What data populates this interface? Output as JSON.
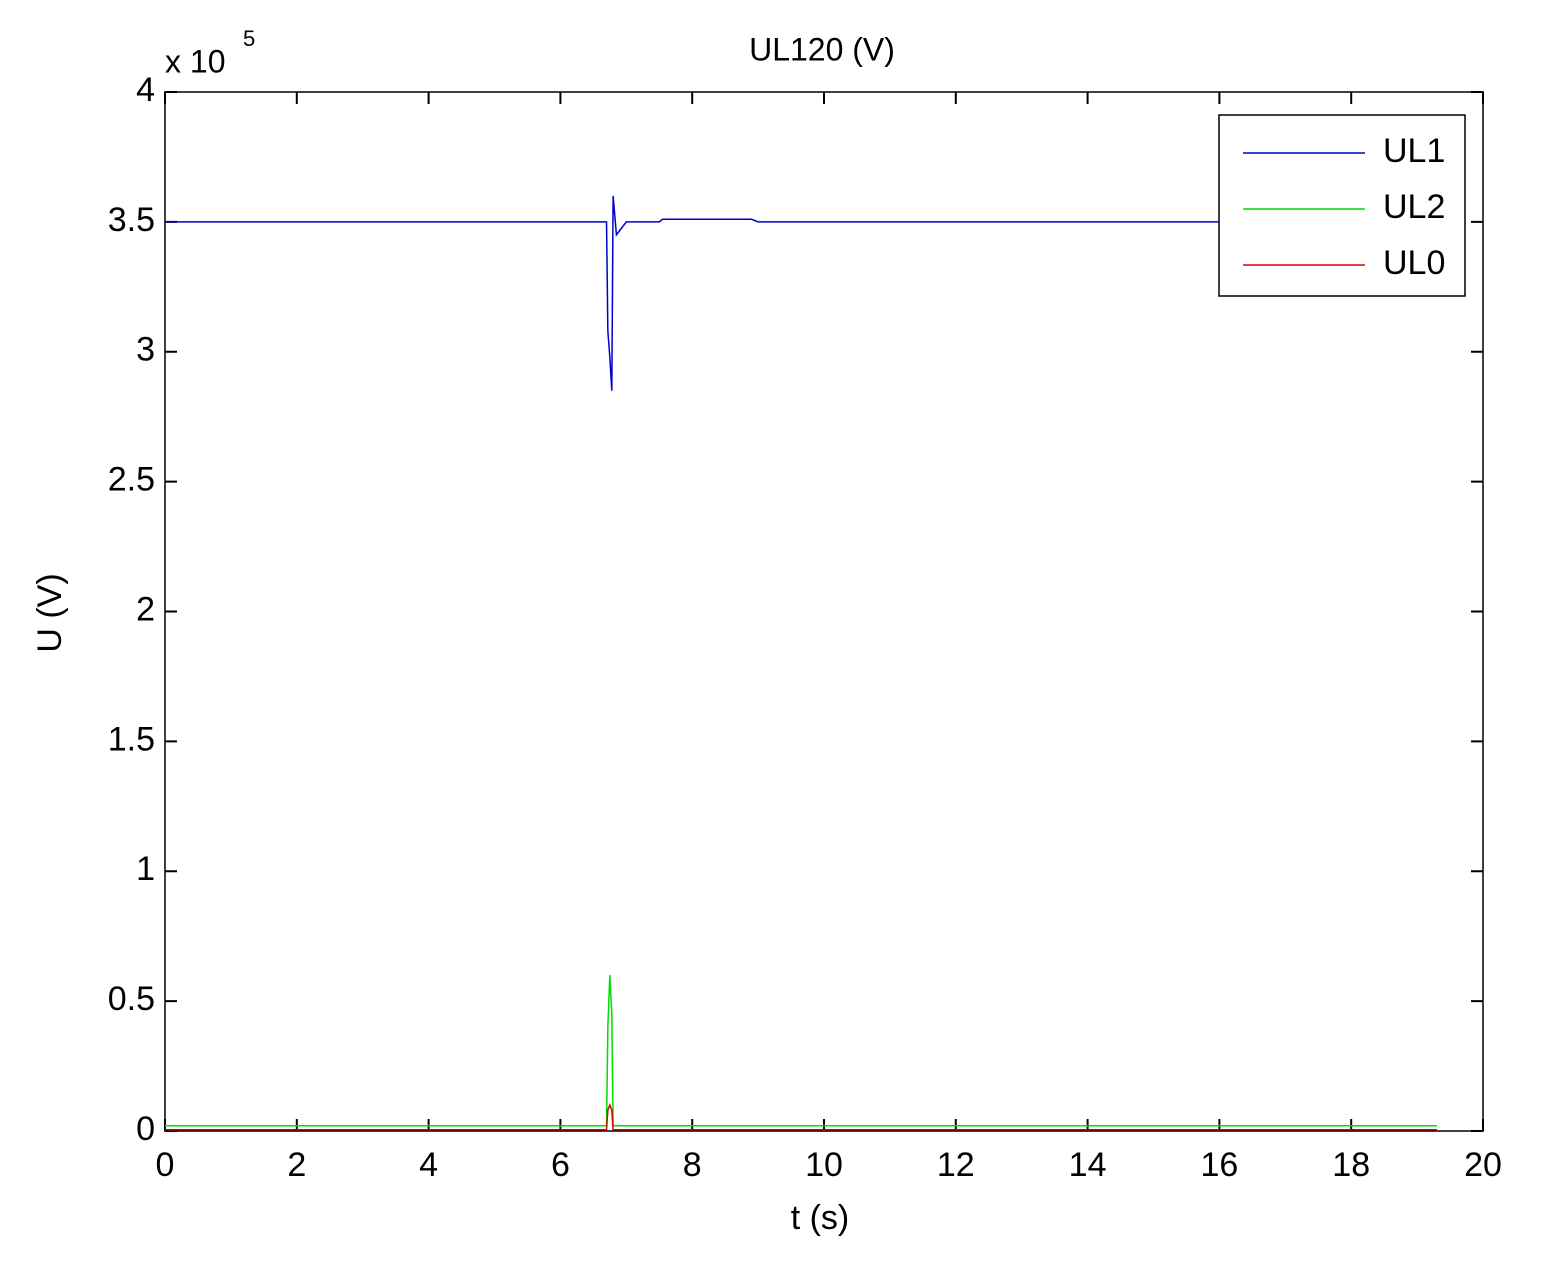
{
  "chart_data": {
    "type": "line",
    "title": "UL120 (V)",
    "xlabel": "t (s)",
    "ylabel": "U (V)",
    "y_multiplier": {
      "base": "x 10",
      "exponent": "5"
    },
    "x": [
      0,
      6.6,
      6.7,
      6.72,
      6.75,
      6.78,
      6.8,
      6.85,
      7.0,
      7.5,
      7.55,
      8.8,
      8.9,
      9.0,
      11.0,
      11.7,
      12.4,
      14.8,
      15.5,
      19.3
    ],
    "series": [
      {
        "name": "UL1",
        "color": "#0000cc",
        "values": [
          3.5,
          3.5,
          3.5,
          3.08,
          2.98,
          2.85,
          3.6,
          3.45,
          3.5,
          3.5,
          3.51,
          3.51,
          3.51,
          3.5,
          3.5,
          3.5,
          3.5,
          3.5,
          3.5,
          3.5
        ]
      },
      {
        "name": "UL2",
        "color": "#00dd00",
        "values": [
          0.02,
          0.02,
          0.02,
          0.4,
          0.6,
          0.45,
          0.02,
          0.02,
          0.02,
          0.02,
          0.02,
          0.02,
          0.02,
          0.02,
          0.02,
          0.02,
          0.02,
          0.02,
          0.02,
          0.02
        ]
      },
      {
        "name": "UL0",
        "color": "#dd0000",
        "values": [
          0.005,
          0.005,
          0.005,
          0.08,
          0.1,
          0.08,
          0.005,
          0.005,
          0.005,
          0.005,
          0.005,
          0.005,
          0.005,
          0.005,
          0.005,
          0.005,
          0.005,
          0.005,
          0.005,
          0.005
        ]
      }
    ],
    "xlim": [
      0,
      20
    ],
    "xticks": [
      0,
      2,
      4,
      6,
      8,
      10,
      12,
      14,
      16,
      18,
      20
    ],
    "ylim": [
      0,
      4
    ],
    "yticks": [
      0,
      0.5,
      1,
      1.5,
      2,
      2.5,
      3,
      3.5,
      4
    ],
    "grid": false,
    "legend": "northeast"
  }
}
